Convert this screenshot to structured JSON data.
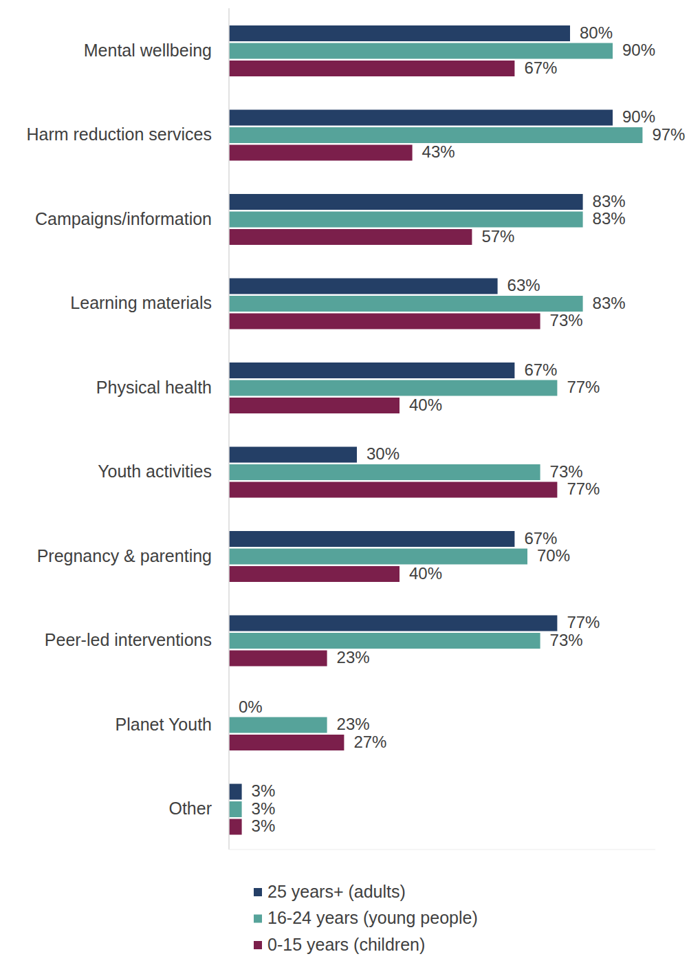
{
  "chart_data": {
    "type": "bar",
    "orientation": "horizontal",
    "categories": [
      "Mental wellbeing",
      "Harm reduction services",
      "Campaigns/information",
      "Learning materials",
      "Physical health",
      "Youth activities",
      "Pregnancy & parenting",
      "Peer-led interventions",
      "Planet Youth",
      "Other"
    ],
    "series": [
      {
        "name": "25 years+ (adults)",
        "color": "#243f66",
        "values": [
          80,
          90,
          83,
          63,
          67,
          30,
          67,
          77,
          0,
          3
        ],
        "value_labels": [
          "80%",
          "90%",
          "83%",
          "63%",
          "67%",
          "30%",
          "67%",
          "77%",
          "0%",
          "3%"
        ]
      },
      {
        "name": "16-24 years (young people)",
        "color": "#56a39a",
        "values": [
          90,
          97,
          83,
          83,
          77,
          73,
          70,
          73,
          23,
          3
        ],
        "value_labels": [
          "90%",
          "97%",
          "83%",
          "83%",
          "77%",
          "73%",
          "70%",
          "73%",
          "23%",
          "3%"
        ]
      },
      {
        "name": "0-15 years (children)",
        "color": "#7b1f4b",
        "values": [
          67,
          43,
          57,
          73,
          40,
          77,
          40,
          23,
          27,
          3
        ],
        "value_labels": [
          "67%",
          "43%",
          "57%",
          "73%",
          "40%",
          "77%",
          "40%",
          "23%",
          "27%",
          "3%"
        ]
      }
    ],
    "xlim": [
      0,
      100
    ],
    "data_labels": true,
    "tick_labels": "y",
    "grid": false,
    "legend": "bottom"
  }
}
